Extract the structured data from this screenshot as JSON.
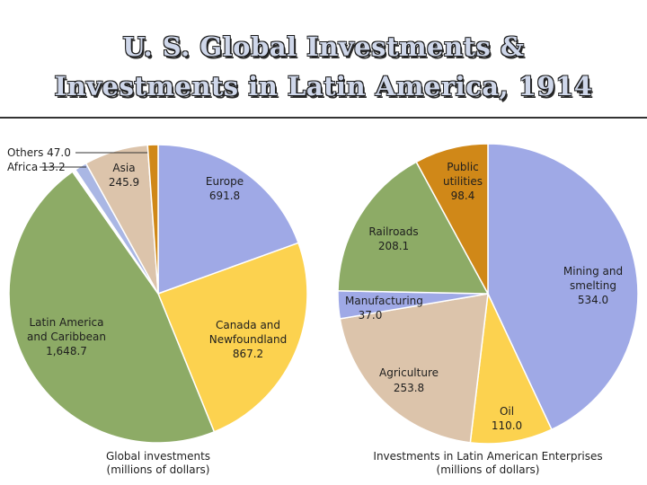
{
  "title": {
    "line1": "U. S. Global Investments &",
    "line2": "Investments in Latin America, 1914"
  },
  "chart_data": [
    {
      "type": "pie",
      "caption_line1": "Global investments",
      "caption_line2": "(millions of dollars)",
      "slices": [
        {
          "label": "Europe",
          "value": 691.8,
          "value_text": "691.8",
          "color": "#9fa9e6"
        },
        {
          "label": "Canada and Newfoundland",
          "value": 867.2,
          "value_text": "867.2",
          "color": "#fcd24f"
        },
        {
          "label": "Latin America and Caribbean",
          "value": 1648.7,
          "value_text": "1,648.7",
          "color": "#8dab66"
        },
        {
          "label": "Africa",
          "value": 13.2,
          "value_text": "13.2",
          "color": "#ffffff"
        },
        {
          "label": "Others",
          "value": 47.0,
          "value_text": "47.0",
          "color": "#aab7e4"
        },
        {
          "label": "Asia",
          "value": 245.9,
          "value_text": "245.9",
          "color": "#dcc4ab"
        },
        {
          "label": "(unlabeled)",
          "value": 40.0,
          "value_text": "",
          "color": "#d08818"
        }
      ]
    },
    {
      "type": "pie",
      "caption_line1": "Investments in Latin American Enterprises",
      "caption_line2": "(millions of dollars)",
      "slices": [
        {
          "label": "Mining and smelting",
          "value": 534.0,
          "value_text": "534.0",
          "color": "#9fa9e6"
        },
        {
          "label": "Oil",
          "value": 110.0,
          "value_text": "110.0",
          "color": "#fcd24f"
        },
        {
          "label": "Agriculture",
          "value": 253.8,
          "value_text": "253.8",
          "color": "#dcc4ab"
        },
        {
          "label": "Manufacturing",
          "value": 37.0,
          "value_text": "37.0",
          "color": "#9fa9e6"
        },
        {
          "label": "Railroads",
          "value": 208.1,
          "value_text": "208.1",
          "color": "#8dab66"
        },
        {
          "label": "Public utilities",
          "value": 98.4,
          "value_text": "98.4",
          "color": "#d08818"
        }
      ]
    }
  ],
  "labels": {
    "global": {
      "europe_1": "Europe",
      "europe_v": "691.8",
      "canada_1": "Canada and",
      "canada_2": "Newfoundland",
      "canada_v": "867.2",
      "latam_1": "Latin America",
      "latam_2": "and Caribbean",
      "latam_v": "1,648.7",
      "asia_1": "Asia",
      "asia_v": "245.9",
      "others": "Others  47.0",
      "africa": "Africa  13.2"
    },
    "latin": {
      "mining_1": "Mining and",
      "mining_2": "smelting",
      "mining_v": "534.0",
      "oil_1": "Oil",
      "oil_v": "110.0",
      "agri_1": "Agriculture",
      "agri_v": "253.8",
      "manu_1": "Manufacturing",
      "manu_v": "37.0",
      "rail_1": "Railroads",
      "rail_v": "208.1",
      "pub_1": "Public",
      "pub_2": "utilities",
      "pub_v": "98.4"
    }
  }
}
